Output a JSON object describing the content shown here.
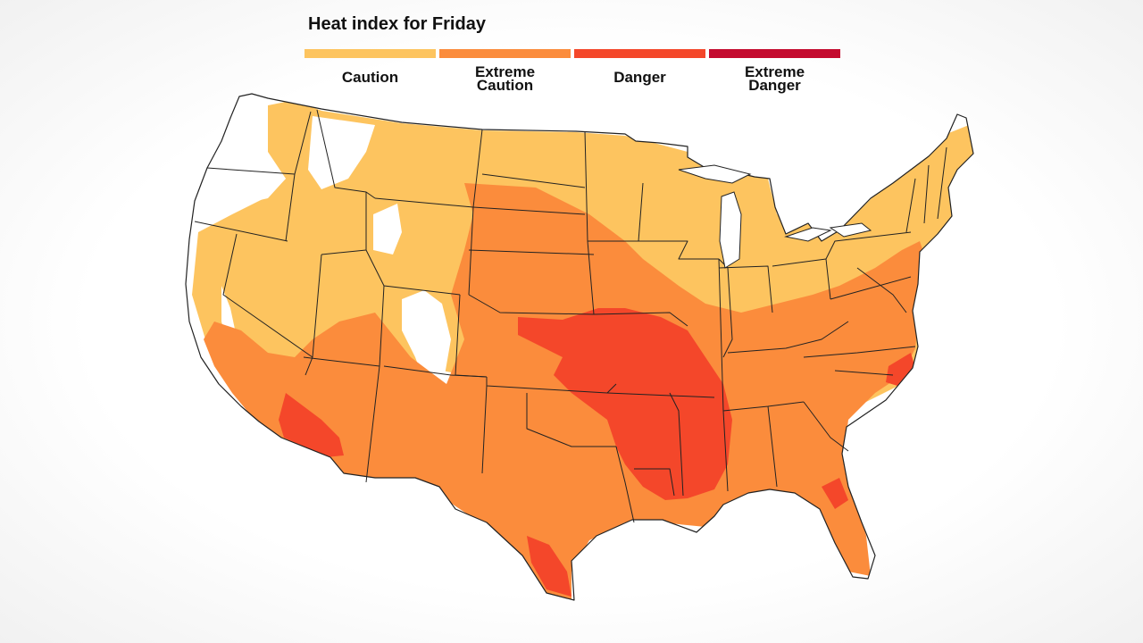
{
  "title": "Heat index for Friday",
  "legend": [
    {
      "line1": "Caution",
      "line2": "",
      "color": "#fdc45f"
    },
    {
      "line1": "Extreme",
      "line2": "Caution",
      "color": "#fb8c3c"
    },
    {
      "line1": "Danger",
      "line2": "",
      "color": "#f4472a"
    },
    {
      "line1": "Extreme",
      "line2": "Danger",
      "color": "#c40b2f"
    }
  ],
  "colors": {
    "none": "#ffffff",
    "caution": "#fdc45f",
    "extreme_caution": "#fb8c3c",
    "danger": "#f4472a",
    "extreme_danger": "#c40b2f",
    "borders": "#222222"
  }
}
